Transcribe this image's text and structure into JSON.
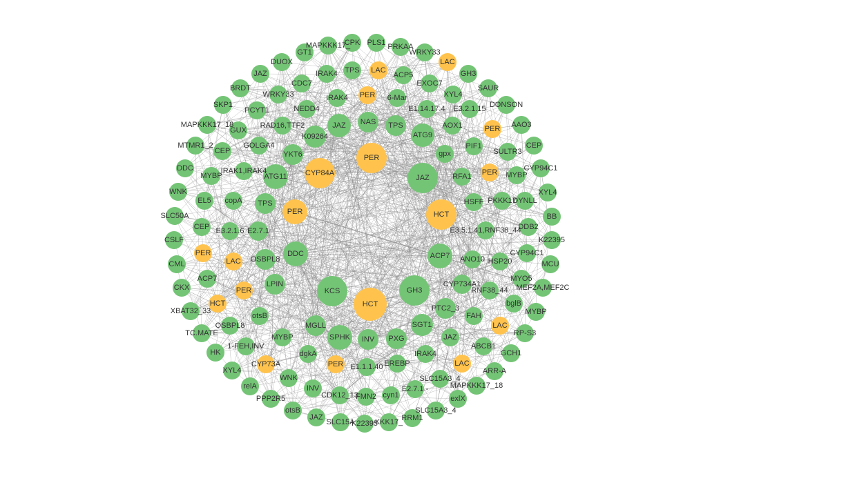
{
  "nodes": [
    {
      "label": "MAPKKK17_",
      "color": "#74c476"
    },
    {
      "label": "CPK",
      "color": "#74c476"
    },
    {
      "label": "PLS1",
      "color": "#74c476"
    },
    {
      "label": "PRKAA",
      "color": "#74c476"
    },
    {
      "label": "WRKY33",
      "color": "#74c476"
    },
    {
      "label": "LAC",
      "color": "#ffc34d"
    },
    {
      "label": "GH3",
      "color": "#74c476"
    },
    {
      "label": "SAUR",
      "color": "#74c476"
    },
    {
      "label": "DONSON",
      "color": "#74c476"
    },
    {
      "label": "AAO3",
      "color": "#74c476"
    },
    {
      "label": "CEP",
      "color": "#74c476"
    },
    {
      "label": "CYP94C1",
      "color": "#74c476"
    },
    {
      "label": "XYL4",
      "color": "#74c476"
    },
    {
      "label": "BB",
      "color": "#74c476"
    },
    {
      "label": "K22395",
      "color": "#74c476"
    },
    {
      "label": "MCU",
      "color": "#74c476"
    },
    {
      "label": "MEF2A,MEF2C",
      "color": "#74c476"
    },
    {
      "label": "MYBP",
      "color": "#74c476"
    },
    {
      "label": "RP-S3",
      "color": "#74c476"
    },
    {
      "label": "GCH1",
      "color": "#74c476"
    },
    {
      "label": "ARR-A",
      "color": "#74c476"
    },
    {
      "label": "MAPKKK17_18",
      "color": "#74c476"
    },
    {
      "label": "exlX",
      "color": "#74c476"
    },
    {
      "label": "SLC15A3_4",
      "color": "#74c476"
    },
    {
      "label": "RRM1",
      "color": "#74c476"
    },
    {
      "label": "KKK17_",
      "color": "#74c476"
    },
    {
      "label": "K22395",
      "color": "#74c476"
    },
    {
      "label": "SLC15A",
      "color": "#74c476"
    },
    {
      "label": "JAZ",
      "color": "#74c476"
    },
    {
      "label": "otsB",
      "color": "#74c476"
    },
    {
      "label": "PPP2R5",
      "color": "#74c476"
    },
    {
      "label": "relA",
      "color": "#74c476"
    },
    {
      "label": "XYL4",
      "color": "#74c476"
    },
    {
      "label": "HK",
      "color": "#74c476"
    },
    {
      "label": "TC.MATE",
      "color": "#74c476"
    },
    {
      "label": "XBAT32_33",
      "color": "#74c476"
    },
    {
      "label": "CKX",
      "color": "#74c476"
    },
    {
      "label": "CML",
      "color": "#74c476"
    },
    {
      "label": "CSLF",
      "color": "#74c476"
    },
    {
      "label": "SLC50A",
      "color": "#74c476"
    },
    {
      "label": "WNK",
      "color": "#74c476"
    },
    {
      "label": "DDC",
      "color": "#74c476"
    },
    {
      "label": "MTMR1_2",
      "color": "#74c476"
    },
    {
      "label": "MAPKKK17_18",
      "color": "#74c476"
    },
    {
      "label": "SKP1",
      "color": "#74c476"
    },
    {
      "label": "BRDT",
      "color": "#74c476"
    },
    {
      "label": "JAZ",
      "color": "#74c476"
    },
    {
      "label": "DUOX",
      "color": "#74c476"
    },
    {
      "label": "GT1",
      "color": "#74c476"
    },
    {
      "label": "IRAK4",
      "color": "#74c476"
    },
    {
      "label": "TPS",
      "color": "#74c476"
    },
    {
      "label": "LAC",
      "color": "#ffc34d"
    },
    {
      "label": "ACP5",
      "color": "#74c476"
    },
    {
      "label": "EXOC7",
      "color": "#74c476"
    },
    {
      "label": "XYL4",
      "color": "#74c476"
    },
    {
      "label": "E3.2.1.15",
      "color": "#74c476"
    },
    {
      "label": "PER",
      "color": "#ffc34d"
    },
    {
      "label": "SULTR3",
      "color": "#74c476"
    },
    {
      "label": "MYBP",
      "color": "#74c476"
    },
    {
      "label": "PKKK17",
      "color": "#74c476"
    },
    {
      "label": "DYNLL",
      "color": "#74c476"
    },
    {
      "label": "DDB2",
      "color": "#74c476"
    },
    {
      "label": "CYP94C1",
      "color": "#74c476"
    },
    {
      "label": "HSP20",
      "color": "#74c476"
    },
    {
      "label": "MYO5",
      "color": "#74c476"
    },
    {
      "label": "bglB",
      "color": "#74c476"
    },
    {
      "label": "LAC",
      "color": "#ffc34d"
    },
    {
      "label": "ABCB1",
      "color": "#74c476"
    },
    {
      "label": "LAC",
      "color": "#ffc34d"
    },
    {
      "label": "SLC15A3_4",
      "color": "#74c476"
    },
    {
      "label": "E2.7.1.-",
      "color": "#74c476"
    },
    {
      "label": "cyn1",
      "color": "#74c476"
    },
    {
      "label": "FMN2",
      "color": "#74c476"
    },
    {
      "label": "CDK12_13",
      "color": "#74c476"
    },
    {
      "label": "INV",
      "color": "#74c476"
    },
    {
      "label": "WNK",
      "color": "#74c476"
    },
    {
      "label": "CYP73A",
      "color": "#ffc34d"
    },
    {
      "label": "1-FEH,INV",
      "color": "#74c476"
    },
    {
      "label": "OSBPL8",
      "color": "#74c476"
    },
    {
      "label": "HCT",
      "color": "#ffc34d"
    },
    {
      "label": "ACP7",
      "color": "#74c476"
    },
    {
      "label": "PER",
      "color": "#ffc34d"
    },
    {
      "label": "CEP",
      "color": "#74c476"
    },
    {
      "label": "EL5",
      "color": "#74c476"
    },
    {
      "label": "MYBP",
      "color": "#74c476"
    },
    {
      "label": "CEP",
      "color": "#74c476"
    },
    {
      "label": "GUX",
      "color": "#74c476"
    },
    {
      "label": "PCYT1",
      "color": "#74c476"
    },
    {
      "label": "WRKY33",
      "color": "#74c476"
    },
    {
      "label": "CDC7",
      "color": "#74c476"
    },
    {
      "label": "IRAK4",
      "color": "#74c476"
    },
    {
      "label": "PER",
      "color": "#ffc34d"
    },
    {
      "label": "6-Mar",
      "color": "#74c476"
    },
    {
      "label": "E1.14.17.4",
      "color": "#74c476"
    },
    {
      "label": "AOX1",
      "color": "#74c476"
    },
    {
      "label": "PIF1",
      "color": "#74c476"
    },
    {
      "label": "PER",
      "color": "#ffc34d"
    },
    {
      "label": "RFA1",
      "color": "#74c476"
    },
    {
      "label": "HSFF",
      "color": "#74c476"
    },
    {
      "label": "E3.5.1.41,RNF38_44",
      "color": "#74c476"
    },
    {
      "label": "ANO10",
      "color": "#74c476"
    },
    {
      "label": "RNF38_44",
      "color": "#74c476"
    },
    {
      "label": "FAH",
      "color": "#74c476"
    },
    {
      "label": "JAZ",
      "color": "#74c476"
    },
    {
      "label": "IRAK4",
      "color": "#74c476"
    },
    {
      "label": "EREBP",
      "color": "#74c476"
    },
    {
      "label": "E1.1.1.40",
      "color": "#74c476"
    },
    {
      "label": "PER",
      "color": "#ffc34d"
    },
    {
      "label": "dgkA",
      "color": "#74c476"
    },
    {
      "label": "MYBP",
      "color": "#74c476"
    },
    {
      "label": "otsB",
      "color": "#74c476"
    },
    {
      "label": "PER",
      "color": "#ffc34d"
    },
    {
      "label": "LAC",
      "color": "#ffc34d"
    },
    {
      "label": "E3.2.1.6",
      "color": "#74c476"
    },
    {
      "label": "copA",
      "color": "#74c476"
    },
    {
      "label": "IRAK1,IRAK4",
      "color": "#74c476"
    },
    {
      "label": "GOLGA4",
      "color": "#74c476"
    },
    {
      "label": "RAD16,TTF2",
      "color": "#74c476"
    },
    {
      "label": "NEDD4",
      "color": "#74c476"
    },
    {
      "label": "JAZ",
      "color": "#74c476"
    },
    {
      "label": "NAS",
      "color": "#74c476"
    },
    {
      "label": "TPS",
      "color": "#74c476"
    },
    {
      "label": "ATG9",
      "color": "#74c476"
    },
    {
      "label": "gpx",
      "color": "#74c476"
    },
    {
      "label": "K09264",
      "color": "#74c476"
    },
    {
      "label": "YKT6",
      "color": "#74c476"
    },
    {
      "label": "ATG11",
      "color": "#74c476"
    },
    {
      "label": "CYP84A",
      "color": "#ffc34d"
    },
    {
      "label": "PER",
      "color": "#ffc34d"
    },
    {
      "label": "JAZ",
      "color": "#74c476"
    },
    {
      "label": "TPS",
      "color": "#74c476"
    },
    {
      "label": "PER",
      "color": "#ffc34d"
    },
    {
      "label": "E2.7.1",
      "color": "#74c476"
    },
    {
      "label": "HCT",
      "color": "#ffc34d"
    },
    {
      "label": "DDC",
      "color": "#74c476"
    },
    {
      "label": "OSBPL8",
      "color": "#74c476"
    },
    {
      "label": "ACP7",
      "color": "#74c476"
    },
    {
      "label": "LPIN",
      "color": "#74c476"
    },
    {
      "label": "KCS",
      "color": "#74c476"
    },
    {
      "label": "HCT",
      "color": "#ffc34d"
    },
    {
      "label": "GH3",
      "color": "#74c476"
    },
    {
      "label": "CYP734A1",
      "color": "#74c476"
    },
    {
      "label": "PTC2_3",
      "color": "#74c476"
    },
    {
      "label": "SGT1",
      "color": "#74c476"
    },
    {
      "label": "PXG",
      "color": "#74c476"
    },
    {
      "label": "INV",
      "color": "#74c476"
    },
    {
      "label": "SPHK",
      "color": "#74c476"
    },
    {
      "label": "MGLL",
      "color": "#74c476"
    }
  ]
}
